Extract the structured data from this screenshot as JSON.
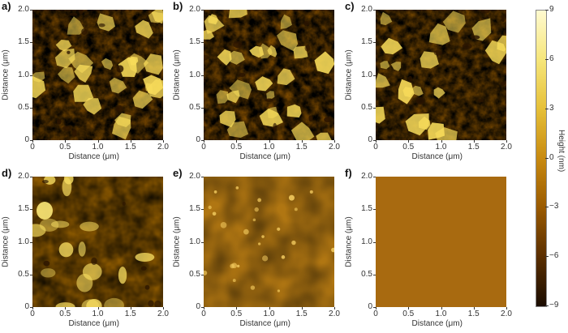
{
  "panels": [
    {
      "letter": "a)",
      "style": "grainy",
      "seed": 11
    },
    {
      "letter": "b)",
      "style": "grainy",
      "seed": 23
    },
    {
      "letter": "c)",
      "style": "grainy2",
      "seed": 37
    },
    {
      "letter": "d)",
      "style": "blotchy",
      "seed": 41
    },
    {
      "letter": "e)",
      "style": "smooth",
      "seed": 53
    },
    {
      "letter": "f)",
      "style": "flat",
      "seed": 67
    }
  ],
  "axes": {
    "x_label": "Distance (μm)",
    "y_label": "Distance (μm)",
    "x_ticks": [
      "0",
      "0.5",
      "1.0",
      "1.5",
      "2.0"
    ],
    "y_ticks": [
      "0",
      "0.5",
      "1.0",
      "1.5",
      "2.0"
    ],
    "range": [
      0,
      2.0
    ]
  },
  "colorbar": {
    "label": "Height (nm)",
    "ticks": [
      "9",
      "6",
      "3",
      "0",
      "−3",
      "−6",
      "−9"
    ],
    "min": -9,
    "max": 9,
    "colors": [
      "#1a0c00",
      "#5a2e00",
      "#9a5a00",
      "#c88a10",
      "#e6c038",
      "#f6e67a",
      "#fffad0"
    ]
  }
}
